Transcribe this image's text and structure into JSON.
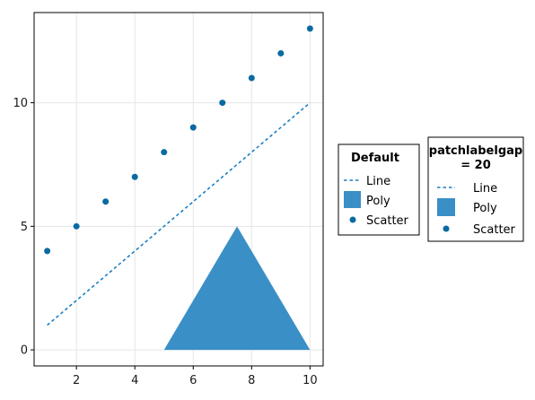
{
  "chart_data": {
    "type": "scatter",
    "xlim": [
      0.55,
      10.45
    ],
    "ylim": [
      -0.65,
      13.65
    ],
    "xticks": [
      2,
      4,
      6,
      8,
      10
    ],
    "yticks": [
      0,
      5,
      10
    ],
    "grid": true,
    "series": [
      {
        "name": "Line",
        "kind": "line",
        "style": "dashed",
        "x": [
          1,
          10
        ],
        "y": [
          1,
          10
        ]
      },
      {
        "name": "Poly",
        "kind": "polygon",
        "x": [
          5,
          10,
          7.5
        ],
        "y": [
          0,
          0,
          5
        ]
      },
      {
        "name": "Scatter",
        "kind": "scatter",
        "x": [
          1,
          2,
          3,
          4,
          5,
          6,
          7,
          8,
          9,
          10
        ],
        "y": [
          4,
          5,
          6,
          7,
          8,
          9,
          10,
          11,
          12,
          13
        ]
      }
    ],
    "colors": {
      "line": "#1b7fc0",
      "poly": "#3a8fc6",
      "scatter": "#0a6aa1"
    }
  },
  "legends": [
    {
      "title": "Default",
      "items": [
        "Line",
        "Poly",
        "Scatter"
      ]
    },
    {
      "title_line1": "patchlabelgap",
      "title_line2": "= 20",
      "items": [
        "Line",
        "Poly",
        "Scatter"
      ]
    }
  ]
}
